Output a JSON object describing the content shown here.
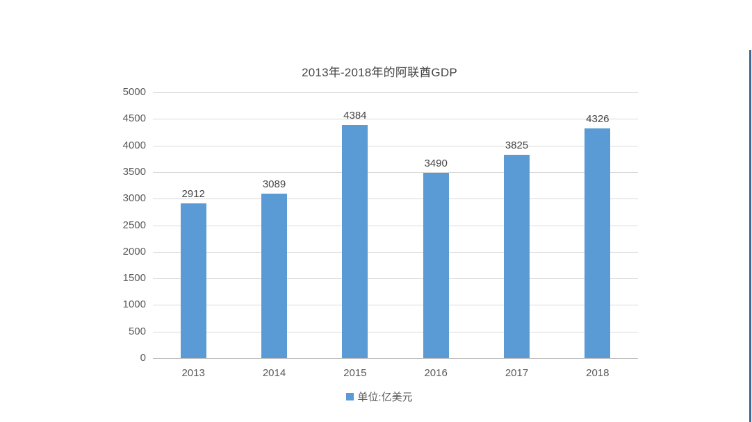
{
  "window": {
    "background_color": "#ffffff",
    "right_edge_color": "#46688e"
  },
  "chart_data": {
    "type": "bar",
    "title": "2013年-2018年的阿联酋GDP",
    "categories": [
      "2013",
      "2014",
      "2015",
      "2016",
      "2017",
      "2018"
    ],
    "values": [
      2912,
      3089,
      4384,
      3490,
      3825,
      4326
    ],
    "xlabel": "",
    "ylabel": "",
    "ylim": [
      0,
      5000
    ],
    "ytick_step": 500,
    "yticks": [
      0,
      500,
      1000,
      1500,
      2000,
      2500,
      3000,
      3500,
      4000,
      4500,
      5000
    ],
    "grid": true,
    "gridline_color": "#d9d9d9",
    "baseline_color": "#c0c0c0",
    "bar_color": "#5b9bd5",
    "label_color": "#444444",
    "tick_color": "#595959",
    "legend_position": "bottom",
    "legend_label": "单位:亿美元"
  }
}
